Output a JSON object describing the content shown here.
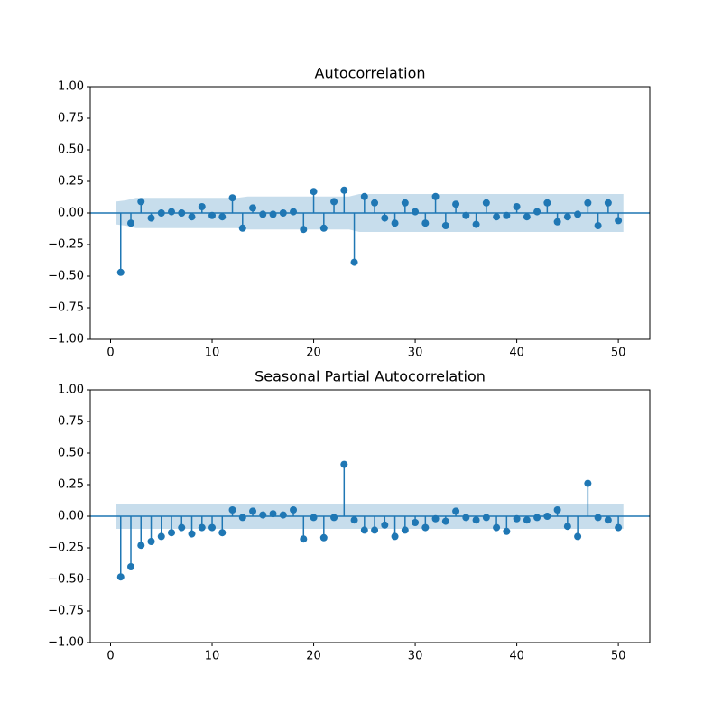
{
  "chart_data": [
    {
      "type": "stem",
      "title": "Autocorrelation",
      "color": "#1f77b4",
      "band_color": "#1f77b4",
      "x": [
        1,
        2,
        3,
        4,
        5,
        6,
        7,
        8,
        9,
        10,
        11,
        12,
        13,
        14,
        15,
        16,
        17,
        18,
        19,
        20,
        21,
        22,
        23,
        24,
        25,
        26,
        27,
        28,
        29,
        30,
        31,
        32,
        33,
        34,
        35,
        36,
        37,
        38,
        39,
        40,
        41,
        42,
        43,
        44,
        45,
        46,
        47,
        48,
        49,
        50
      ],
      "values": [
        -0.47,
        -0.08,
        0.09,
        -0.04,
        0.0,
        0.01,
        0.0,
        -0.03,
        0.05,
        -0.02,
        -0.03,
        0.12,
        -0.12,
        0.04,
        -0.01,
        -0.01,
        0.0,
        0.01,
        -0.13,
        0.17,
        -0.12,
        0.09,
        0.18,
        -0.39,
        0.13,
        0.08,
        -0.04,
        -0.08,
        0.08,
        0.01,
        -0.08,
        0.13,
        -0.1,
        0.07,
        -0.02,
        -0.09,
        0.08,
        -0.03,
        -0.02,
        0.05,
        -0.03,
        0.01,
        0.08,
        -0.07,
        -0.03,
        -0.01,
        0.08,
        -0.1,
        0.08,
        -0.06
      ],
      "band": {
        "x": [
          0.5,
          1.5,
          2.5,
          12.5,
          13.5,
          23.5,
          24.5,
          50.5
        ],
        "halfwidth": [
          0.09,
          0.1,
          0.12,
          0.12,
          0.13,
          0.13,
          0.15,
          0.15
        ]
      },
      "xlim": [
        -2,
        53.1
      ],
      "ylim": [
        -1,
        1
      ],
      "xticks": [
        0,
        10,
        20,
        30,
        40,
        50
      ],
      "yticks": [
        {
          "value": -1,
          "label": "−1.00"
        },
        {
          "value": -0.75,
          "label": "−0.75"
        },
        {
          "value": -0.5,
          "label": "−0.50"
        },
        {
          "value": -0.25,
          "label": "−0.25"
        },
        {
          "value": 0,
          "label": "0.00"
        },
        {
          "value": 0.25,
          "label": "0.25"
        },
        {
          "value": 0.5,
          "label": "0.50"
        },
        {
          "value": 0.75,
          "label": "0.75"
        },
        {
          "value": 1,
          "label": "1.00"
        }
      ]
    },
    {
      "type": "stem",
      "title": "Seasonal Partial Autocorrelation",
      "color": "#1f77b4",
      "band_color": "#1f77b4",
      "x": [
        1,
        2,
        3,
        4,
        5,
        6,
        7,
        8,
        9,
        10,
        11,
        12,
        13,
        14,
        15,
        16,
        17,
        18,
        19,
        20,
        21,
        22,
        23,
        24,
        25,
        26,
        27,
        28,
        29,
        30,
        31,
        32,
        33,
        34,
        35,
        36,
        37,
        38,
        39,
        40,
        41,
        42,
        43,
        44,
        45,
        46,
        47,
        48,
        49,
        50
      ],
      "values": [
        -0.48,
        -0.4,
        -0.23,
        -0.2,
        -0.16,
        -0.13,
        -0.09,
        -0.14,
        -0.09,
        -0.09,
        -0.13,
        0.05,
        -0.01,
        0.04,
        0.01,
        0.02,
        0.01,
        0.05,
        -0.18,
        -0.01,
        -0.17,
        -0.01,
        0.41,
        -0.03,
        -0.11,
        -0.11,
        -0.07,
        -0.16,
        -0.11,
        -0.05,
        -0.09,
        -0.02,
        -0.04,
        0.04,
        -0.01,
        -0.03,
        -0.01,
        -0.09,
        -0.12,
        -0.02,
        -0.03,
        -0.01,
        0.0,
        0.05,
        -0.08,
        -0.16,
        0.26,
        -0.01,
        -0.03,
        -0.09
      ],
      "band": {
        "x": [
          0.5,
          50.5
        ],
        "halfwidth": [
          0.1,
          0.1
        ]
      },
      "xlim": [
        -2,
        53.1
      ],
      "ylim": [
        -1,
        1
      ],
      "xticks": [
        0,
        10,
        20,
        30,
        40,
        50
      ],
      "yticks": [
        {
          "value": -1,
          "label": "−1.00"
        },
        {
          "value": -0.75,
          "label": "−0.75"
        },
        {
          "value": -0.5,
          "label": "−0.50"
        },
        {
          "value": -0.25,
          "label": "−0.25"
        },
        {
          "value": 0,
          "label": "0.00"
        },
        {
          "value": 0.25,
          "label": "0.25"
        },
        {
          "value": 0.5,
          "label": "0.50"
        },
        {
          "value": 0.75,
          "label": "0.75"
        },
        {
          "value": 1,
          "label": "1.00"
        }
      ]
    }
  ]
}
